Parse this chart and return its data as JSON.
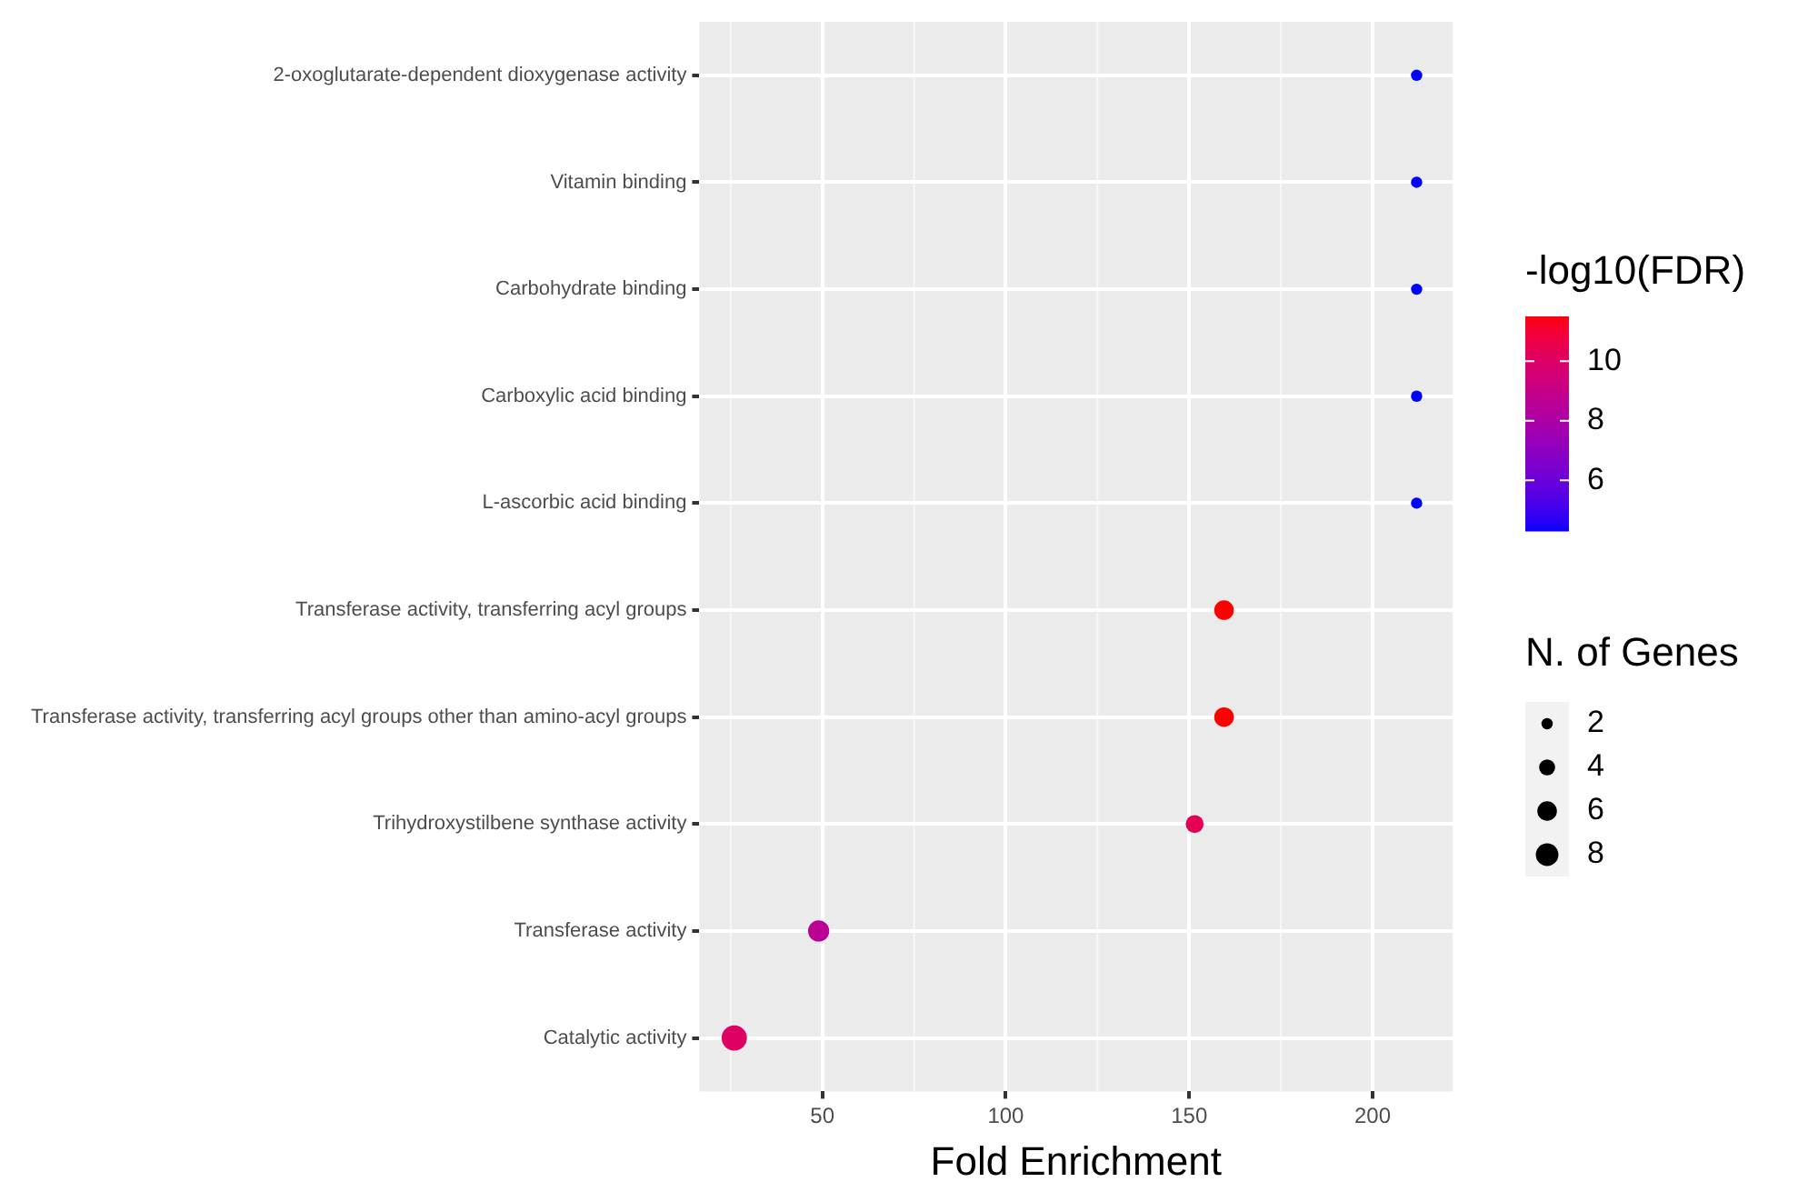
{
  "chart_data": {
    "type": "bubble",
    "orientation": "horizontal",
    "categories": [
      "2-oxoglutarate-dependent dioxygenase activity",
      "Vitamin binding",
      "Carbohydrate binding",
      "Carboxylic acid binding",
      "L-ascorbic acid binding",
      "Transferase activity, transferring acyl groups",
      "Transferase activity, transferring acyl groups other than amino-acyl groups",
      "Trihydroxystilbene synthase activity",
      "Transferase activity",
      "Catalytic activity"
    ],
    "xlabel": "Fold Enrichment",
    "xlim": [
      16.5,
      221.8
    ],
    "xticks": [
      50,
      100,
      150,
      200
    ],
    "grid": true,
    "clabel": "-log10(FDR)",
    "clim": [
      4.3,
      11.5
    ],
    "cticks": [
      6,
      8,
      10
    ],
    "legend_title": "N. of Genes",
    "size_legend": [
      2,
      4,
      6,
      8
    ],
    "series": [
      {
        "values": [
          212,
          212,
          212,
          212,
          212,
          159.5,
          159.5,
          151.5,
          49,
          26
        ],
        "sizes": [
          2,
          2,
          2,
          2,
          2,
          6,
          6,
          5,
          7,
          10
        ],
        "cvalues": [
          4.3,
          4.3,
          4.3,
          4.3,
          4.3,
          11.5,
          11.5,
          10.3,
          8.6,
          10
        ]
      }
    ]
  }
}
